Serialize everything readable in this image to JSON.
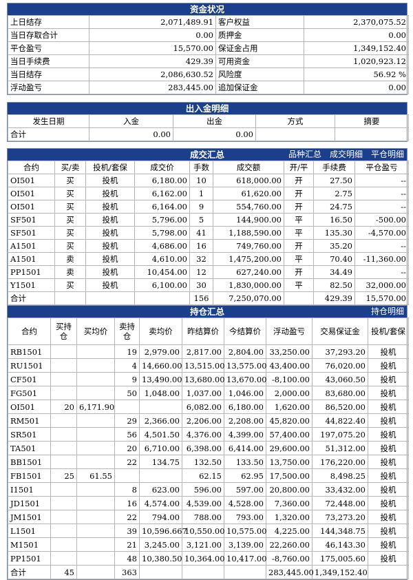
{
  "fund": {
    "title": "资金状况",
    "rows": [
      {
        "l1": "上日结存",
        "v1": "2,071,489.91",
        "l2": "客户权益",
        "v2": "2,370,075.52"
      },
      {
        "l1": "当日存取合计",
        "v1": "0.00",
        "l2": "质押金",
        "v2": "0.00"
      },
      {
        "l1": "平仓盈亏",
        "v1": "15,570.00",
        "l2": "保证金占用",
        "v2": "1,349,152.40"
      },
      {
        "l1": "当日手续费",
        "v1": "429.39",
        "l2": "可用资金",
        "v2": "1,020,923.12"
      },
      {
        "l1": "当日结存",
        "v1": "2,086,630.52",
        "l2": "风险度",
        "v2": "56.92 %"
      },
      {
        "l1": "浮动盈亏",
        "v1": "283,445.00",
        "l2": "追加保证金",
        "v2": "0.00"
      }
    ]
  },
  "cash": {
    "title": "出入金明细",
    "headers": [
      "发生日期",
      "入金",
      "出金",
      "方式",
      "摘要"
    ],
    "total": [
      "合计",
      "0.00",
      "0.00",
      "",
      ""
    ]
  },
  "trades": {
    "title": "成交汇总",
    "links": [
      "品种汇总",
      "成交明细",
      "平仓明细"
    ],
    "headers": [
      "合约",
      "买/卖",
      "投机/套保",
      "成交价",
      "手数",
      "成交额",
      "开/平",
      "手续费",
      "平仓盈亏"
    ],
    "rows": [
      [
        "OI501",
        "买",
        "投机",
        "6,180.00",
        "10",
        "618,000.00",
        "开",
        "27.50",
        "--"
      ],
      [
        "OI501",
        "买",
        "投机",
        "6,162.00",
        "1",
        "61,620.00",
        "开",
        "2.75",
        "--"
      ],
      [
        "OI501",
        "买",
        "投机",
        "6,164.00",
        "9",
        "554,760.00",
        "开",
        "24.75",
        "--"
      ],
      [
        "SF501",
        "买",
        "投机",
        "5,796.00",
        "5",
        "144,900.00",
        "平",
        "16.50",
        "-500.00"
      ],
      [
        "SF501",
        "买",
        "投机",
        "5,798.00",
        "41",
        "1,188,590.00",
        "平",
        "135.30",
        "-4,570.00"
      ],
      [
        "A1501",
        "买",
        "投机",
        "4,686.00",
        "16",
        "749,760.00",
        "开",
        "35.20",
        "--"
      ],
      [
        "A1501",
        "卖",
        "投机",
        "4,610.00",
        "32",
        "1,475,200.00",
        "平",
        "70.40",
        "-11,360.00"
      ],
      [
        "PP1501",
        "卖",
        "投机",
        "10,454.00",
        "12",
        "627,240.00",
        "开",
        "34.49",
        "--"
      ],
      [
        "Y1501",
        "买",
        "投机",
        "6,100.00",
        "30",
        "1,830,000.00",
        "平",
        "82.50",
        "32,000.00"
      ]
    ],
    "total": [
      "合计",
      "",
      "",
      "",
      "156",
      "7,250,070.00",
      "",
      "429.39",
      "15,570.00"
    ]
  },
  "positions": {
    "title": "持仓汇总",
    "link": "持仓明细",
    "headers": [
      "合约",
      "买持仓",
      "买均价",
      "卖持仓",
      "卖均价",
      "昨结算价",
      "今结算价",
      "浮动盈亏",
      "交易保证金",
      "投机/套保"
    ],
    "rows": [
      [
        "RB1501",
        "",
        "",
        "19",
        "2,979.00",
        "2,817.00",
        "2,804.00",
        "33,250.00",
        "37,293.20",
        "投机"
      ],
      [
        "RU1501",
        "",
        "",
        "4",
        "14,660.00",
        "13,515.00",
        "13,575.00",
        "43,400.00",
        "76,020.00",
        "投机"
      ],
      [
        "CF501",
        "",
        "",
        "9",
        "13,490.00",
        "13,680.00",
        "13,670.00",
        "-8,100.00",
        "43,060.50",
        "投机"
      ],
      [
        "FG501",
        "",
        "",
        "50",
        "1,048.00",
        "1,037.00",
        "1,046.00",
        "2,000.00",
        "83,680.00",
        "投机"
      ],
      [
        "OI501",
        "20",
        "6,171.90",
        "",
        "",
        "6,082.00",
        "6,180.00",
        "1,620.00",
        "86,520.00",
        "投机"
      ],
      [
        "RM501",
        "",
        "",
        "29",
        "2,366.00",
        "2,206.00",
        "2,208.00",
        "45,820.00",
        "44,822.40",
        "投机"
      ],
      [
        "SR501",
        "",
        "",
        "56",
        "4,501.50",
        "4,376.00",
        "4,399.00",
        "57,400.00",
        "197,075.20",
        "投机"
      ],
      [
        "TA501",
        "",
        "",
        "20",
        "6,710.00",
        "6,398.00",
        "6,414.00",
        "29,600.00",
        "51,312.00",
        "投机"
      ],
      [
        "BB1501",
        "",
        "",
        "22",
        "134.75",
        "132.50",
        "133.50",
        "13,750.00",
        "176,220.00",
        "投机"
      ],
      [
        "FB1501",
        "25",
        "61.55",
        "",
        "",
        "62.15",
        "62.95",
        "17,500.00",
        "8,498.25",
        "投机"
      ],
      [
        "I1501",
        "",
        "",
        "8",
        "623.00",
        "596.00",
        "597.00",
        "20,800.00",
        "33,432.00",
        "投机"
      ],
      [
        "JD1501",
        "",
        "",
        "16",
        "4,574.00",
        "4,539.00",
        "4,528.00",
        "7,360.00",
        "72,448.00",
        "投机"
      ],
      [
        "JM1501",
        "",
        "",
        "22",
        "794.00",
        "788.00",
        "793.00",
        "1,320.00",
        "73,273.20",
        "投机"
      ],
      [
        "L1501",
        "",
        "",
        "39",
        "10,596.667",
        "10,550.00",
        "10,575.00",
        "4,225.00",
        "144,348.75",
        "投机"
      ],
      [
        "M1501",
        "",
        "",
        "21",
        "3,245.00",
        "3,121.00",
        "3,139.00",
        "22,260.00",
        "46,143.30",
        "投机"
      ],
      [
        "PP1501",
        "",
        "",
        "48",
        "10,380.50",
        "10,364.00",
        "10,417.00",
        "-8,760.00",
        "175,005.60",
        "投机"
      ]
    ],
    "total": [
      "合计",
      "45",
      "",
      "363",
      "",
      "",
      "",
      "283,445.00",
      "1,349,152.40",
      ""
    ]
  },
  "colors": {
    "header_bar": "#1b3f8b",
    "border": "#b7b7b7"
  }
}
